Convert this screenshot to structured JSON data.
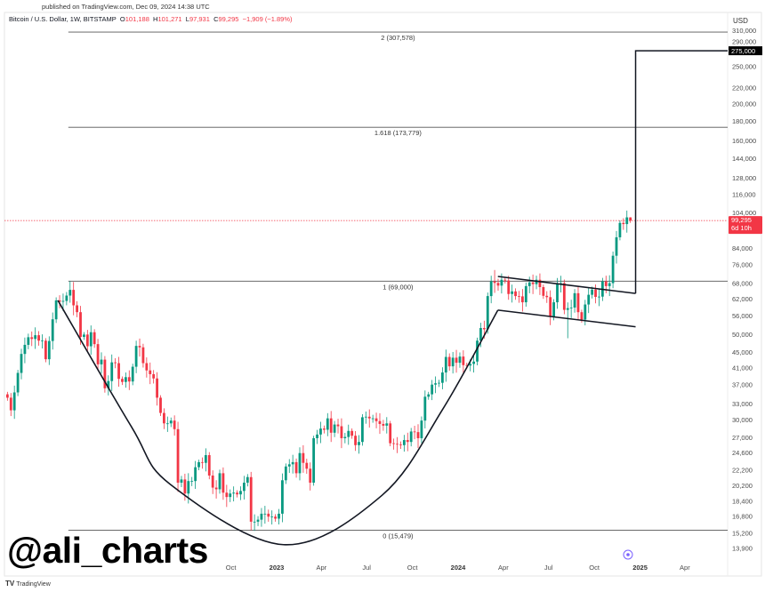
{
  "header": {
    "published": "published on TradingView.com, Dec 09, 2024 14:38 UTC",
    "symbol": "Bitcoin / U.S. Dollar, 1W, BITSTAMP",
    "open_label": "O",
    "open": "101,188",
    "high_label": "H",
    "high": "101,271",
    "low_label": "L",
    "low": "97,931",
    "close_label": "C",
    "close": "99,295",
    "change": "−1,909 (−1.89%)"
  },
  "watermark": "@ali_charts",
  "footer_logo": "TradingView",
  "colors": {
    "up": "#089981",
    "down": "#f23645",
    "drawing": "#131722",
    "fib_line": "#555555",
    "last_price": "#f23645",
    "target_box": "#000000",
    "target_icon": "#7b61ff"
  },
  "chart_data": {
    "type": "candlestick",
    "interval": "1W",
    "y_scale": "log",
    "y_unit": "USD",
    "ylim": [
      13300,
      330000
    ],
    "xlim": [
      "2021-06-28",
      "2025-05-20"
    ],
    "grid": false,
    "first_week": "2021-07-05",
    "first_open": 35000,
    "weekly_closes": [
      34300,
      31800,
      35400,
      39800,
      44600,
      47100,
      49300,
      48800,
      49900,
      48300,
      48300,
      43200,
      48200,
      54900,
      61500,
      61000,
      61300,
      63300,
      65500,
      59700,
      57300,
      49400,
      50100,
      46700,
      50800,
      47300,
      41900,
      43100,
      36300,
      37900,
      42400,
      42200,
      38400,
      37700,
      38800,
      37800,
      41300,
      46800,
      46400,
      42200,
      40400,
      39500,
      38500,
      34300,
      31300,
      29400,
      29400,
      29900,
      28400,
      20600,
      21000,
      19300,
      20800,
      20800,
      22600,
      23300,
      23200,
      24300,
      21500,
      20000,
      19800,
      21800,
      19400,
      18900,
      19300,
      19400,
      19200,
      19600,
      20600,
      21300,
      16300,
      16300,
      16500,
      17100,
      17100,
      16800,
      16800,
      16600,
      17100,
      20900,
      22700,
      23000,
      23300,
      21800,
      24600,
      23200,
      22400,
      20600,
      26900,
      27500,
      28500,
      28300,
      30300,
      27800,
      29200,
      28900,
      26900,
      27100,
      28100,
      27300,
      25800,
      26300,
      30500,
      30600,
      30300,
      30300,
      29800,
      29300,
      29000,
      29400,
      26100,
      26000,
      25900,
      25800,
      26600,
      26300,
      28000,
      27900,
      26900,
      29900,
      34500,
      35000,
      37100,
      37400,
      37500,
      39900,
      43800,
      41400,
      43600,
      42300,
      43900,
      41700,
      41600,
      42000,
      42600,
      48300,
      52100,
      51700,
      63100,
      68900,
      68300,
      67200,
      69600,
      69300,
      63900,
      64900,
      63100,
      63000,
      60800,
      67000,
      68500,
      67800,
      69600,
      66600,
      63200,
      62700,
      55800,
      60800,
      68200,
      68200,
      58100,
      58700,
      58900,
      64200,
      57300,
      54800,
      60000,
      63600,
      65600,
      62800,
      62900,
      68900,
      67000,
      68200,
      80400,
      89800,
      97900,
      97200,
      101200,
      99300
    ],
    "wick_overrides": {
      "2021-11-08": {
        "h": 69000
      },
      "2022-11-07": {
        "l": 15479
      },
      "2024-03-11": {
        "h": 73800
      },
      "2024-08-05": {
        "l": 49000
      },
      "2024-12-09": {
        "o": 101188,
        "h": 101271,
        "l": 97931,
        "c": 99295
      }
    },
    "y_ticks": [
      "310,000",
      "290,000",
      "250,000",
      "220,000",
      "200,000",
      "180,000",
      "160,000",
      "144,000",
      "128,000",
      "116,000",
      "104,000",
      "84,000",
      "76,000",
      "68,000",
      "62,000",
      "56,000",
      "50,000",
      "45,000",
      "41,000",
      "37,000",
      "33,000",
      "30,000",
      "27,000",
      "24,600",
      "22,200",
      "20,200",
      "18,400",
      "16,800",
      "15,200",
      "13,900"
    ],
    "x_ticks": [
      {
        "label": "Oct",
        "date": "2022-10-01",
        "year": false
      },
      {
        "label": "2023",
        "date": "2023-01-01",
        "year": true
      },
      {
        "label": "Apr",
        "date": "2023-04-01",
        "year": false
      },
      {
        "label": "Jul",
        "date": "2023-07-01",
        "year": false
      },
      {
        "label": "Oct",
        "date": "2023-10-01",
        "year": false
      },
      {
        "label": "2024",
        "date": "2024-01-01",
        "year": true
      },
      {
        "label": "Apr",
        "date": "2024-04-01",
        "year": false
      },
      {
        "label": "Jul",
        "date": "2024-07-01",
        "year": false
      },
      {
        "label": "Oct",
        "date": "2024-10-01",
        "year": false
      },
      {
        "label": "2025",
        "date": "2025-01-01",
        "year": true
      },
      {
        "label": "Apr",
        "date": "2025-04-01",
        "year": false
      }
    ],
    "axis_currency": "USD",
    "last_price": {
      "value": 99295,
      "label": "99,295",
      "countdown": "6d 10h"
    },
    "fib_levels": [
      {
        "label": "2 (307,578)",
        "price": 307578
      },
      {
        "label": "1.618 (173,779)",
        "price": 173779
      },
      {
        "label": "1 (69,000)",
        "price": 69000
      },
      {
        "label": "0 (15,479)",
        "price": 15479
      }
    ],
    "fib_start": "2021-11-08",
    "cup_curve": [
      [
        "2021-10-18",
        61500
      ],
      [
        "2022-03-15",
        28800
      ],
      [
        "2022-06-01",
        20400
      ],
      [
        "2023-01-15",
        14200
      ],
      [
        "2023-08-01",
        19100
      ],
      [
        "2023-12-01",
        32000
      ],
      [
        "2024-03-21",
        58000
      ]
    ],
    "flag_upper": [
      [
        "2024-03-21",
        71000
      ],
      [
        "2024-12-23",
        64100
      ]
    ],
    "flag_lower": [
      [
        "2024-03-21",
        58000
      ],
      [
        "2024-12-23",
        52500
      ]
    ],
    "target": {
      "date": "2024-12-23",
      "from": 64100,
      "price": 275000,
      "label": "275,000"
    }
  }
}
